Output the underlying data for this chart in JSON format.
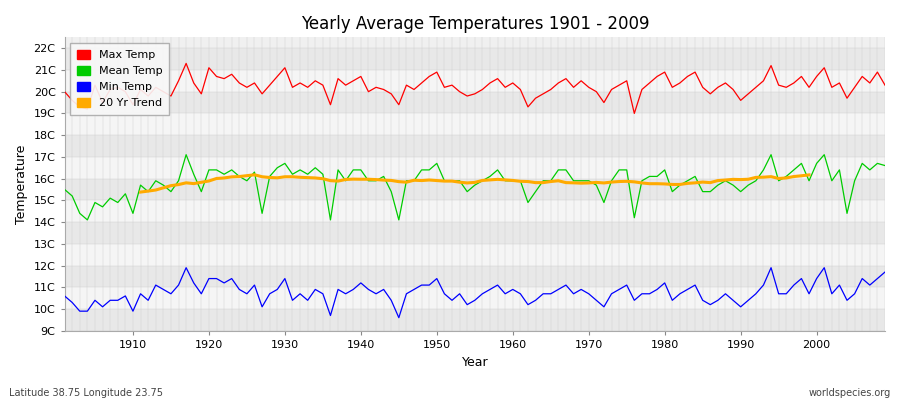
{
  "title": "Yearly Average Temperatures 1901 - 2009",
  "xlabel": "Year",
  "ylabel": "Temperature",
  "x_start": 1901,
  "x_end": 2009,
  "yticks": [
    9,
    10,
    11,
    12,
    13,
    14,
    15,
    16,
    17,
    18,
    19,
    20,
    21,
    22
  ],
  "ytick_labels": [
    "9C",
    "10C",
    "11C",
    "12C",
    "13C",
    "14C",
    "15C",
    "16C",
    "17C",
    "18C",
    "19C",
    "20C",
    "21C",
    "22C"
  ],
  "ylim": [
    9,
    22.5
  ],
  "xlim": [
    1901,
    2009
  ],
  "xticks": [
    1910,
    1920,
    1930,
    1940,
    1950,
    1960,
    1970,
    1980,
    1990,
    2000
  ],
  "legend_labels": [
    "Max Temp",
    "Mean Temp",
    "Min Temp",
    "20 Yr Trend"
  ],
  "line_colors": {
    "max": "#ff0000",
    "mean": "#00cc00",
    "min": "#0000ff",
    "trend": "#ffaa00"
  },
  "band_color_odd": "#e8e8e8",
  "band_color_even": "#f5f5f5",
  "plot_bg_color": "#f0f0f0",
  "fig_bg_color": "#ffffff",
  "subtitle_left": "Latitude 38.75 Longitude 23.75",
  "subtitle_right": "worldspecies.org",
  "max_temps": [
    20.0,
    19.6,
    19.3,
    19.2,
    20.3,
    19.5,
    20.1,
    20.2,
    20.0,
    19.4,
    20.1,
    19.8,
    20.2,
    20.0,
    19.8,
    20.5,
    21.3,
    20.4,
    19.9,
    21.1,
    20.7,
    20.6,
    20.8,
    20.4,
    20.2,
    20.4,
    19.9,
    20.3,
    20.7,
    21.1,
    20.2,
    20.4,
    20.2,
    20.5,
    20.3,
    19.4,
    20.6,
    20.3,
    20.5,
    20.7,
    20.0,
    20.2,
    20.1,
    19.9,
    19.4,
    20.3,
    20.1,
    20.4,
    20.7,
    20.9,
    20.2,
    20.3,
    20.0,
    19.8,
    19.9,
    20.1,
    20.4,
    20.6,
    20.2,
    20.4,
    20.1,
    19.3,
    19.7,
    19.9,
    20.1,
    20.4,
    20.6,
    20.2,
    20.5,
    20.2,
    20.0,
    19.5,
    20.1,
    20.3,
    20.5,
    19.0,
    20.1,
    20.4,
    20.7,
    20.9,
    20.2,
    20.4,
    20.7,
    20.9,
    20.2,
    19.9,
    20.2,
    20.4,
    20.1,
    19.6,
    19.9,
    20.2,
    20.5,
    21.2,
    20.3,
    20.2,
    20.4,
    20.7,
    20.2,
    20.7,
    21.1,
    20.2,
    20.4,
    19.7,
    20.2,
    20.7,
    20.4,
    20.9,
    20.3
  ],
  "mean_temps": [
    15.5,
    15.2,
    14.4,
    14.1,
    14.9,
    14.7,
    15.1,
    14.9,
    15.3,
    14.4,
    15.7,
    15.4,
    15.9,
    15.7,
    15.4,
    15.9,
    17.1,
    16.2,
    15.4,
    16.4,
    16.4,
    16.2,
    16.4,
    16.1,
    15.9,
    16.3,
    14.4,
    16.1,
    16.5,
    16.7,
    16.2,
    16.4,
    16.2,
    16.5,
    16.2,
    14.1,
    16.4,
    15.9,
    16.4,
    16.4,
    15.9,
    15.9,
    16.1,
    15.4,
    14.1,
    15.9,
    15.9,
    16.4,
    16.4,
    16.7,
    15.9,
    15.9,
    15.9,
    15.4,
    15.7,
    15.9,
    16.1,
    16.4,
    15.9,
    15.9,
    15.9,
    14.9,
    15.4,
    15.9,
    15.9,
    16.4,
    16.4,
    15.9,
    15.9,
    15.9,
    15.7,
    14.9,
    15.9,
    16.4,
    16.4,
    14.2,
    15.9,
    16.1,
    16.1,
    16.4,
    15.4,
    15.7,
    15.9,
    16.1,
    15.4,
    15.4,
    15.7,
    15.9,
    15.7,
    15.4,
    15.7,
    15.9,
    16.4,
    17.1,
    15.9,
    16.1,
    16.4,
    16.7,
    15.9,
    16.7,
    17.1,
    15.9,
    16.4,
    14.4,
    15.9,
    16.7,
    16.4,
    16.7,
    16.6
  ],
  "min_temps": [
    10.6,
    10.3,
    9.9,
    9.9,
    10.4,
    10.1,
    10.4,
    10.4,
    10.6,
    9.9,
    10.7,
    10.4,
    11.1,
    10.9,
    10.7,
    11.1,
    11.9,
    11.2,
    10.7,
    11.4,
    11.4,
    11.2,
    11.4,
    10.9,
    10.7,
    11.1,
    10.1,
    10.7,
    10.9,
    11.4,
    10.4,
    10.7,
    10.4,
    10.9,
    10.7,
    9.7,
    10.9,
    10.7,
    10.9,
    11.2,
    10.9,
    10.7,
    10.9,
    10.4,
    9.6,
    10.7,
    10.9,
    11.1,
    11.1,
    11.4,
    10.7,
    10.4,
    10.7,
    10.2,
    10.4,
    10.7,
    10.9,
    11.1,
    10.7,
    10.9,
    10.7,
    10.2,
    10.4,
    10.7,
    10.7,
    10.9,
    11.1,
    10.7,
    10.9,
    10.7,
    10.4,
    10.1,
    10.7,
    10.9,
    11.1,
    10.4,
    10.7,
    10.7,
    10.9,
    11.2,
    10.4,
    10.7,
    10.9,
    11.1,
    10.4,
    10.2,
    10.4,
    10.7,
    10.4,
    10.1,
    10.4,
    10.7,
    11.1,
    11.9,
    10.7,
    10.7,
    11.1,
    11.4,
    10.7,
    11.4,
    11.9,
    10.7,
    11.1,
    10.4,
    10.7,
    11.4,
    11.1,
    11.4,
    11.7
  ]
}
